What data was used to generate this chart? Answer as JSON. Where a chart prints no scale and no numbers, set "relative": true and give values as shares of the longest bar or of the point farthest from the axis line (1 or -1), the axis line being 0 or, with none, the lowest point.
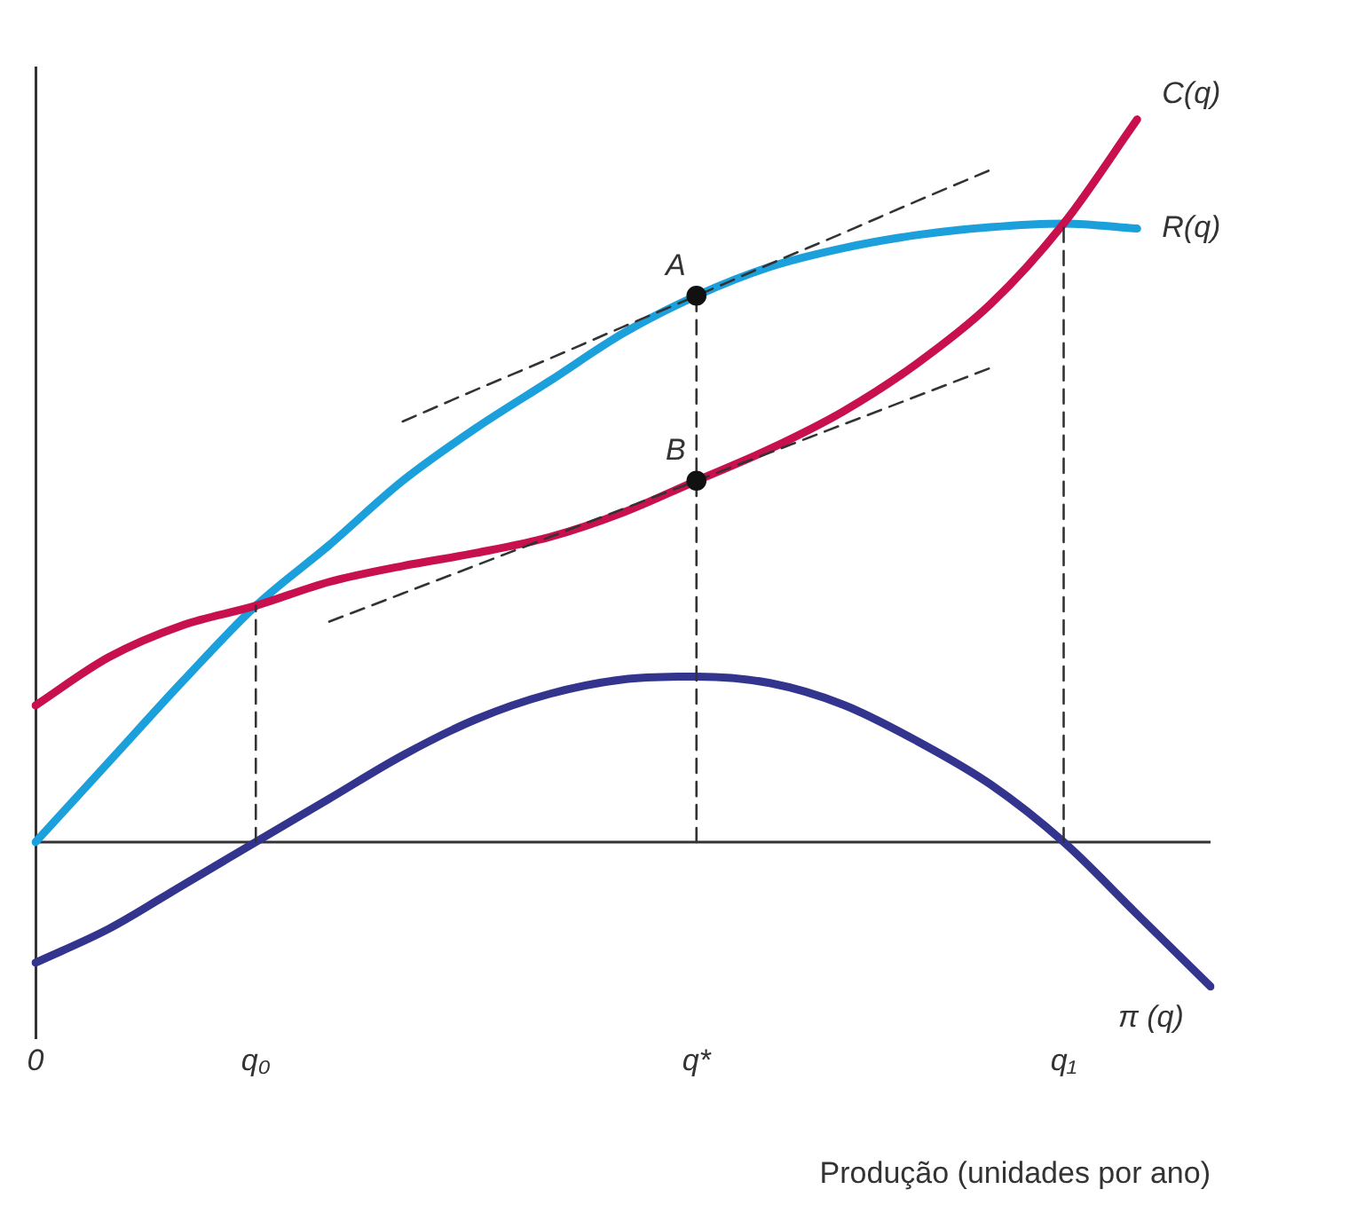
{
  "chart_data": {
    "type": "line",
    "relative": true,
    "xlabel": "Produção (unidades por ano)",
    "categories": [
      "0",
      null,
      null,
      "q₀",
      null,
      null,
      null,
      null,
      null,
      "q*",
      null,
      null,
      null,
      null,
      "q₁",
      null,
      null
    ],
    "grid": false,
    "legend": false,
    "line_style": "solid",
    "marker": "none",
    "series": [
      {
        "name": "π (q)",
        "color": "#33348e",
        "values": [
          -0.167,
          -0.12,
          -0.06,
          0,
          0.06,
          0.12,
          0.17,
          0.205,
          0.225,
          0.229,
          0.22,
          0.19,
          0.14,
          0.08,
          0,
          -0.1,
          -0.2
        ]
      },
      {
        "name": "R(q)",
        "color": "#1ba0dc",
        "values": [
          0,
          0.111,
          0.222,
          0.327,
          0.411,
          0.5,
          0.573,
          0.638,
          0.704,
          0.756,
          0.796,
          0.822,
          0.84,
          0.851,
          0.856,
          0.849,
          null
        ]
      },
      {
        "name": "C(q)",
        "color": "#c8104e",
        "values": [
          0.189,
          0.256,
          0.3,
          0.327,
          0.36,
          0.382,
          0.4,
          0.422,
          0.456,
          0.5,
          0.544,
          0.596,
          0.662,
          0.744,
          0.856,
          1,
          null
        ]
      },
      {
        "type": "line",
        "color": "#333333",
        "line_style": "dashed",
        "values": [
          null,
          null,
          null,
          null,
          null,
          0.582,
          0.626,
          0.669,
          0.713,
          0.756,
          0.8,
          0.843,
          0.887,
          0.93,
          null,
          null,
          null
        ]
      },
      {
        "type": "line",
        "color": "#333333",
        "line_style": "dashed",
        "values": [
          null,
          null,
          null,
          null,
          0.305,
          0.344,
          0.383,
          0.422,
          0.461,
          0.5,
          0.539,
          0.578,
          0.617,
          0.656,
          null,
          null,
          null
        ]
      },
      {
        "type": "line",
        "color": "#333333",
        "line_style": "dashed",
        "x": [
          "q₀",
          "q₀"
        ],
        "values": [
          0,
          0.327
        ]
      },
      {
        "type": "line",
        "color": "#333333",
        "line_style": "dashed",
        "x": [
          "q*",
          "q*"
        ],
        "values": [
          0,
          0.756
        ]
      },
      {
        "type": "line",
        "color": "#333333",
        "line_style": "dashed",
        "x": [
          "q₁",
          "q₁"
        ],
        "values": [
          0,
          0.856
        ]
      },
      {
        "type": "scatter",
        "color": "#111111",
        "marker": "circle",
        "x": [
          "q*",
          "q*"
        ],
        "values": [
          0.756,
          0.5
        ]
      }
    ],
    "annotations": [
      {
        "text": "A",
        "x": "q*",
        "y": 0.756
      },
      {
        "text": "B",
        "x": "q*",
        "y": 0.5
      }
    ]
  }
}
